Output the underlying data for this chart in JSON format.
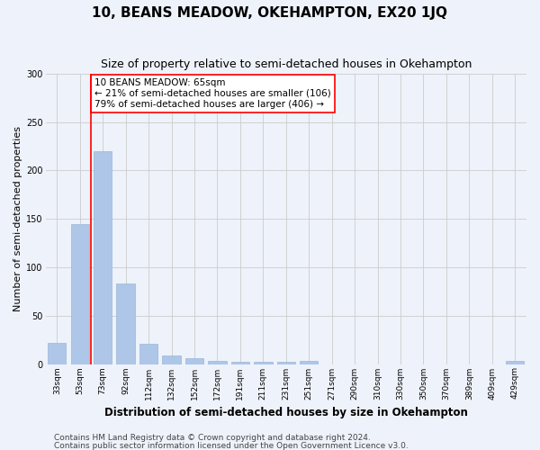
{
  "title": "10, BEANS MEADOW, OKEHAMPTON, EX20 1JQ",
  "subtitle": "Size of property relative to semi-detached houses in Okehampton",
  "xlabel": "Distribution of semi-detached houses by size in Okehampton",
  "ylabel": "Number of semi-detached properties",
  "categories": [
    "33sqm",
    "53sqm",
    "73sqm",
    "92sqm",
    "112sqm",
    "132sqm",
    "152sqm",
    "172sqm",
    "191sqm",
    "211sqm",
    "231sqm",
    "251sqm",
    "271sqm",
    "290sqm",
    "310sqm",
    "330sqm",
    "350sqm",
    "370sqm",
    "389sqm",
    "409sqm",
    "429sqm"
  ],
  "values": [
    22,
    145,
    220,
    83,
    21,
    9,
    6,
    3,
    2,
    2,
    2,
    3,
    0,
    0,
    0,
    0,
    0,
    0,
    0,
    0,
    3
  ],
  "bar_color": "#aec6e8",
  "bar_edge_color": "#9ab8d8",
  "vline_x": 1.5,
  "vline_color": "red",
  "annotation_text": "10 BEANS MEADOW: 65sqm\n← 21% of semi-detached houses are smaller (106)\n79% of semi-detached houses are larger (406) →",
  "annotation_box_color": "white",
  "annotation_box_edge": "red",
  "ylim": [
    0,
    300
  ],
  "yticks": [
    0,
    50,
    100,
    150,
    200,
    250,
    300
  ],
  "grid_color": "#cccccc",
  "bg_color": "#eef2fa",
  "footer1": "Contains HM Land Registry data © Crown copyright and database right 2024.",
  "footer2": "Contains public sector information licensed under the Open Government Licence v3.0.",
  "title_fontsize": 11,
  "subtitle_fontsize": 9,
  "axis_label_fontsize": 8,
  "tick_fontsize": 6.5,
  "footer_fontsize": 6.5,
  "ann_fontsize": 7.5
}
